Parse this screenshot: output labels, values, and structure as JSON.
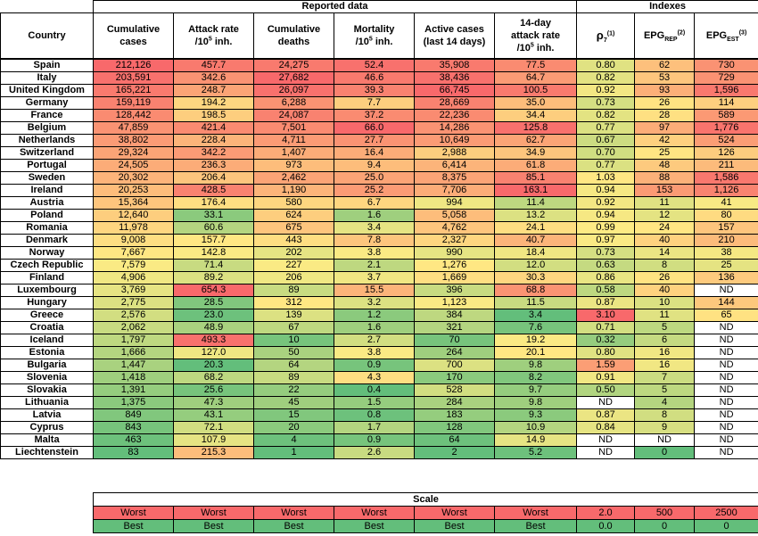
{
  "groups": {
    "reported": "Reported data",
    "indexes": "Indexes"
  },
  "headers": {
    "country": "Country",
    "cum_cases_1": "Cumulative",
    "cum_cases_2": "cases",
    "attack_1": "Attack rate",
    "attack_2a": "/10",
    "attack_sup": "5",
    "attack_2b": " inh.",
    "cum_deaths_1": "Cumulative",
    "cum_deaths_2": "deaths",
    "mort_1": "Mortality",
    "mort_2a": "/10",
    "mort_sup": "5",
    "mort_2b": " inh.",
    "active_1": "Active cases",
    "active_2": "(last 14 days)",
    "d14_1": "14-day",
    "d14_2": "attack rate",
    "d14_3a": "/10",
    "d14_sup": "5",
    "d14_3b": " inh.",
    "rho": "ρ",
    "rho_sub": "7",
    "rho_sup": "(1)",
    "epgrep": "EPG",
    "epgrep_sub": "REP",
    "epgrep_sup": "(2)",
    "epgest": "EPG",
    "epgest_sub": "EST",
    "epgest_sup": "(3)"
  },
  "colors": {
    "worst": "#f8696b",
    "mid": "#ffeb84",
    "best": "#63be7b",
    "white": "#ffffff"
  },
  "rows": [
    [
      "Spain",
      "212,126",
      "457.7",
      "24,275",
      "52.4",
      "35,908",
      "77.5",
      "0.80",
      "62",
      "730"
    ],
    [
      "Italy",
      "203,591",
      "342.6",
      "27,682",
      "46.6",
      "38,436",
      "64.7",
      "0.82",
      "53",
      "729"
    ],
    [
      "United Kingdom",
      "165,221",
      "248.7",
      "26,097",
      "39.3",
      "66,745",
      "100.5",
      "0.92",
      "93",
      "1,596"
    ],
    [
      "Germany",
      "159,119",
      "194.2",
      "6,288",
      "7.7",
      "28,669",
      "35.0",
      "0.73",
      "26",
      "114"
    ],
    [
      "France",
      "128,442",
      "198.5",
      "24,087",
      "37.2",
      "22,236",
      "34.4",
      "0.82",
      "28",
      "589"
    ],
    [
      "Belgium",
      "47,859",
      "421.4",
      "7,501",
      "66.0",
      "14,286",
      "125.8",
      "0.77",
      "97",
      "1,776"
    ],
    [
      "Netherlands",
      "38,802",
      "228.4",
      "4,711",
      "27.7",
      "10,649",
      "62.7",
      "0.67",
      "42",
      "524"
    ],
    [
      "Switzerland",
      "29,324",
      "342.2",
      "1,407",
      "16.4",
      "2,988",
      "34.9",
      "0.70",
      "25",
      "126"
    ],
    [
      "Portugal",
      "24,505",
      "236.3",
      "973",
      "9.4",
      "6,414",
      "61.8",
      "0.77",
      "48",
      "211"
    ],
    [
      "Sweden",
      "20,302",
      "206.4",
      "2,462",
      "25.0",
      "8,375",
      "85.1",
      "1.03",
      "88",
      "1,586"
    ],
    [
      "Ireland",
      "20,253",
      "428.5",
      "1,190",
      "25.2",
      "7,706",
      "163.1",
      "0.94",
      "153",
      "1,126"
    ],
    [
      "Austria",
      "15,364",
      "176.4",
      "580",
      "6.7",
      "994",
      "11.4",
      "0.92",
      "11",
      "41"
    ],
    [
      "Poland",
      "12,640",
      "33.1",
      "624",
      "1.6",
      "5,058",
      "13.2",
      "0.94",
      "12",
      "80"
    ],
    [
      "Romania",
      "11,978",
      "60.6",
      "675",
      "3.4",
      "4,762",
      "24.1",
      "0.99",
      "24",
      "157"
    ],
    [
      "Denmark",
      "9,008",
      "157.7",
      "443",
      "7.8",
      "2,327",
      "40.7",
      "0.97",
      "40",
      "210"
    ],
    [
      "Norway",
      "7,667",
      "142.8",
      "202",
      "3.8",
      "990",
      "18.4",
      "0.73",
      "14",
      "38"
    ],
    [
      "Czech Republic",
      "7,579",
      "71.4",
      "227",
      "2.1",
      "1,276",
      "12.0",
      "0.63",
      "8",
      "25"
    ],
    [
      "Finland",
      "4,906",
      "89.2",
      "206",
      "3.7",
      "1,669",
      "30.3",
      "0.86",
      "26",
      "136"
    ],
    [
      "Luxembourg",
      "3,769",
      "654.3",
      "89",
      "15.5",
      "396",
      "68.8",
      "0.58",
      "40",
      "ND"
    ],
    [
      "Hungary",
      "2,775",
      "28.5",
      "312",
      "3.2",
      "1,123",
      "11.5",
      "0.87",
      "10",
      "144"
    ],
    [
      "Greece",
      "2,576",
      "23.0",
      "139",
      "1.2",
      "384",
      "3.4",
      "3.10",
      "11",
      "65"
    ],
    [
      "Croatia",
      "2,062",
      "48.9",
      "67",
      "1.6",
      "321",
      "7.6",
      "0.71",
      "5",
      "ND"
    ],
    [
      "Iceland",
      "1,797",
      "493.3",
      "10",
      "2.7",
      "70",
      "19.2",
      "0.32",
      "6",
      "ND"
    ],
    [
      "Estonia",
      "1,666",
      "127.0",
      "50",
      "3.8",
      "264",
      "20.1",
      "0.80",
      "16",
      "ND"
    ],
    [
      "Bulgaria",
      "1,447",
      "20.3",
      "64",
      "0.9",
      "700",
      "9.8",
      "1.59",
      "16",
      "ND"
    ],
    [
      "Slovenia",
      "1,418",
      "68.2",
      "89",
      "4.3",
      "170",
      "8.2",
      "0.91",
      "7",
      "ND"
    ],
    [
      "Slovakia",
      "1,391",
      "25.6",
      "22",
      "0.4",
      "528",
      "9.7",
      "0.50",
      "5",
      "ND"
    ],
    [
      "Lithuania",
      "1,375",
      "47.3",
      "45",
      "1.5",
      "284",
      "9.8",
      "ND",
      "4",
      "ND"
    ],
    [
      "Latvia",
      "849",
      "43.1",
      "15",
      "0.8",
      "183",
      "9.3",
      "0.87",
      "8",
      "ND"
    ],
    [
      "Cyprus",
      "843",
      "72.1",
      "20",
      "1.7",
      "128",
      "10.9",
      "0.84",
      "9",
      "ND"
    ],
    [
      "Malta",
      "463",
      "107.9",
      "4",
      "0.9",
      "64",
      "14.9",
      "ND",
      "ND",
      "ND"
    ],
    [
      "Liechtenstein",
      "83",
      "215.3",
      "1",
      "2.6",
      "2",
      "5.2",
      "ND",
      "0",
      "ND"
    ]
  ],
  "scale": {
    "title": "Scale",
    "worst": [
      "Worst",
      "Worst",
      "Worst",
      "Worst",
      "Worst",
      "Worst",
      "2.0",
      "500",
      "2500"
    ],
    "best": [
      "Best",
      "Best",
      "Best",
      "Best",
      "Best",
      "Best",
      "0.0",
      "0",
      "0"
    ]
  }
}
